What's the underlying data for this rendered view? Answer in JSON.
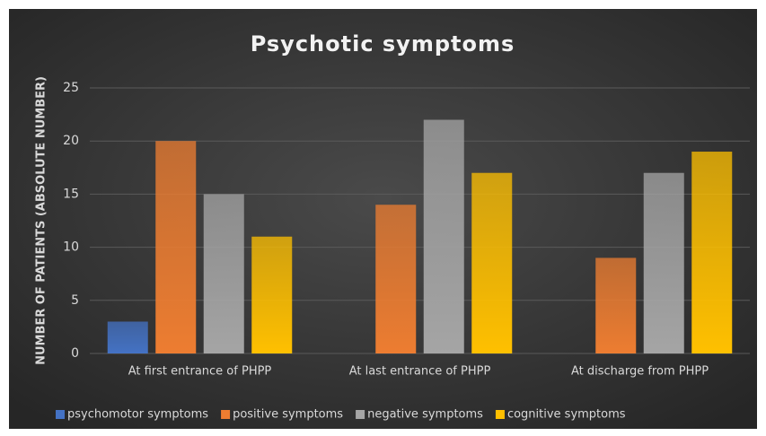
{
  "chart_data": {
    "type": "bar",
    "title": "Psychotic symptoms",
    "y_label": "NUMBER OF PATIENTS  (ABSOLUTE NUMBER)",
    "categories": [
      "At first entrance of PHPP",
      "At last entrance of PHPP",
      "At discharge from PHPP"
    ],
    "series": [
      {
        "name": "psychomotor symptoms",
        "color": "#4472c4",
        "values": [
          3,
          0,
          0
        ]
      },
      {
        "name": "positive symptoms",
        "color": "#ed7d31",
        "values": [
          20,
          14,
          9
        ]
      },
      {
        "name": "negative symptoms",
        "color": "#a5a5a5",
        "values": [
          15,
          22,
          17
        ]
      },
      {
        "name": "cognitive symptoms",
        "color": "#ffc000",
        "values": [
          11,
          17,
          19
        ]
      }
    ],
    "ylim": [
      0,
      25
    ],
    "yticks": [
      0,
      5,
      10,
      15,
      20,
      25
    ],
    "grid": true,
    "legend": "bottom"
  }
}
